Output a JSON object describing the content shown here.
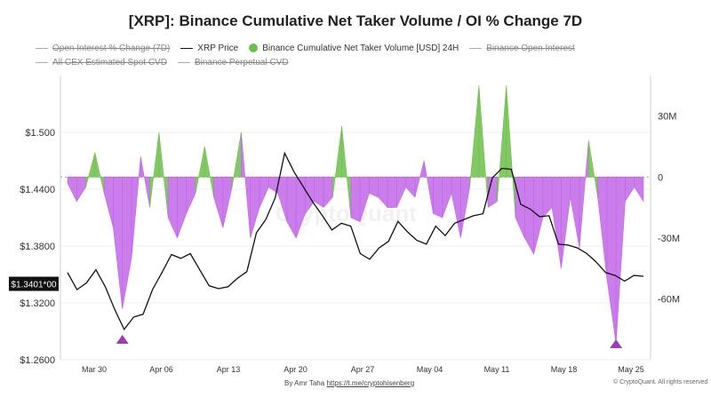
{
  "title": "[XRP]: Binance Cumulative Net Taker Volume / OI % Change 7D",
  "legend": [
    {
      "label": "Open Interest % Change (7D)",
      "kind": "line",
      "color": "#aaaaaa",
      "off": true
    },
    {
      "label": "XRP Price",
      "kind": "line",
      "color": "#111111",
      "off": false
    },
    {
      "label": "Binance Cumulative Net Taker Volume [USD] 24H",
      "kind": "dot",
      "color": "#6cc04a",
      "off": false
    },
    {
      "label": "Binance Open Interest",
      "kind": "line",
      "color": "#aaaaaa",
      "off": true
    },
    {
      "label": "All CEX Estimated Spot CVD",
      "kind": "line",
      "color": "#aaaaaa",
      "off": true
    },
    {
      "label": "Binance Perpetual CVD",
      "kind": "line",
      "color": "#aaaaaa",
      "off": true
    }
  ],
  "watermark": "CryptoQuant",
  "footer": {
    "by": "By Amr Taha",
    "link": "https://t.me/cryptohisenberg",
    "copyright": "© CryptoQuant. All rights reserved"
  },
  "chart_data": {
    "type": "line",
    "x_tick_labels": [
      "Mar 30",
      "Apr 06",
      "Apr 13",
      "Apr 20",
      "Apr 27",
      "May 04",
      "May 11",
      "May 18",
      "May 25"
    ],
    "left_axis": {
      "ticks": [
        "$1.2600",
        "$1.3200",
        "$1.3800",
        "$1.4400",
        "$1.500"
      ],
      "ylim": [
        1.26,
        1.56
      ]
    },
    "right_axis": {
      "ticks": [
        "-60M",
        "-30M",
        "0",
        "30M"
      ],
      "ylim": [
        -90,
        50
      ]
    },
    "current_price_label": "$1.3401*00",
    "series": [
      {
        "name": "XRP Price",
        "axis": "left",
        "color": "#111111",
        "values": [
          1.352,
          1.334,
          1.341,
          1.355,
          1.337,
          1.313,
          1.292,
          1.305,
          1.308,
          1.334,
          1.352,
          1.371,
          1.367,
          1.372,
          1.355,
          1.338,
          1.335,
          1.337,
          1.346,
          1.353,
          1.394,
          1.408,
          1.431,
          1.478,
          1.458,
          1.442,
          1.426,
          1.412,
          1.397,
          1.404,
          1.401,
          1.372,
          1.366,
          1.378,
          1.385,
          1.406,
          1.395,
          1.386,
          1.382,
          1.401,
          1.391,
          1.404,
          1.408,
          1.412,
          1.414,
          1.452,
          1.462,
          1.461,
          1.424,
          1.419,
          1.411,
          1.412,
          1.382,
          1.381,
          1.378,
          1.372,
          1.363,
          1.352,
          1.349,
          1.343,
          1.349,
          1.348
        ]
      },
      {
        "name": "Binance Cumulative Net Taker Volume [USD] 24H",
        "axis": "right",
        "color_pos": "#6cc04a",
        "color_neg": "#c266e8",
        "values": [
          -3,
          -12,
          -5,
          12,
          -8,
          -25,
          -65,
          -40,
          10,
          -15,
          22,
          -20,
          -30,
          -18,
          -8,
          15,
          -10,
          -25,
          -5,
          22,
          -30,
          -15,
          -5,
          -8,
          -22,
          -30,
          -18,
          -12,
          -15,
          -10,
          25,
          -20,
          -22,
          -8,
          -10,
          -15,
          -15,
          -5,
          -10,
          8,
          -18,
          -20,
          -8,
          -30,
          -5,
          45,
          -15,
          -12,
          45,
          -20,
          -30,
          -38,
          -20,
          -15,
          -45,
          -10,
          -35,
          18,
          -10,
          -50,
          -82,
          -12,
          -5,
          -12
        ]
      }
    ],
    "markers": [
      {
        "shape": "triangle",
        "color": "#9b3db8"
      },
      {
        "shape": "triangle",
        "color": "#9b3db8"
      }
    ]
  }
}
